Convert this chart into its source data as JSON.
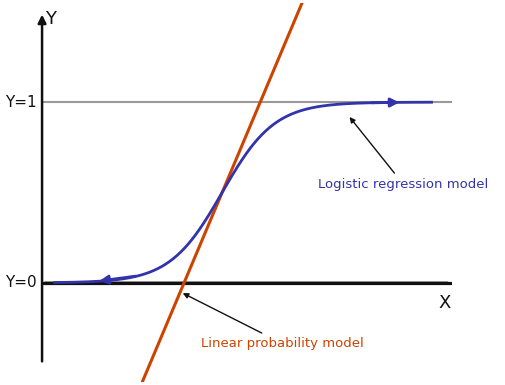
{
  "background_color": "#ffffff",
  "sigmoid_color": "#3333aa",
  "linear_color": "#cc4400",
  "hline_color": "#999999",
  "axis_color": "#111111",
  "annotation_color": "#111111",
  "logistic_label": "Logistic regression model",
  "linear_label": "Linear probability model",
  "logistic_label_color": "#3333aa",
  "linear_label_color": "#cc4400",
  "y0_label": "Y=0",
  "y1_label": "Y=1",
  "x_label": "X",
  "y_label": "Y",
  "xlim": [
    -4.5,
    6.0
  ],
  "ylim": [
    -0.55,
    1.55
  ],
  "lw_sigmoid": 2.0,
  "lw_linear": 2.2,
  "lw_hline": 1.5,
  "lw_axis": 1.8
}
